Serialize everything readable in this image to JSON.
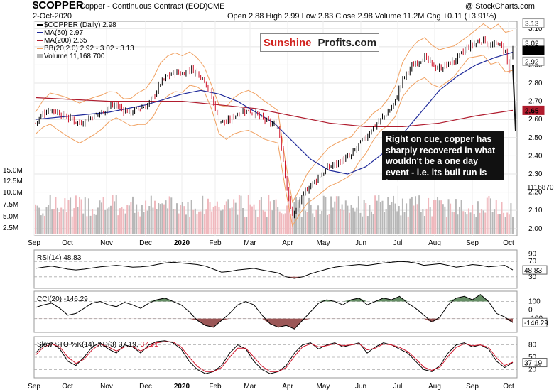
{
  "header": {
    "symbol": "$COPPER",
    "description": "Copper - Continuous Contract (EOD)",
    "exchange": "CME",
    "date": "2-Oct-2020",
    "ohlc_text": "Open 2.88 High 2.99 Low 2.83 Close 2.98 Volume 11.2M Chg +0.11 (+3.91%)",
    "watermark": "@ StockCharts.com"
  },
  "legend": {
    "price": "$COPPER (Daily) 2.98",
    "ma50": "MA(50) 2.97",
    "ma200": "MA(200) 2.65",
    "bb": "BB(20,2.0) 2.92 - 3.02 - 3.13",
    "volume": "Volume 11,168,700"
  },
  "brand": {
    "part1": "Sunshine",
    "part2": "Profits.com"
  },
  "annotation": "Right on cue, copper has sharply recovered in what wouldn't be a one day event - i.e. its bull run is intact.",
  "panels": {
    "rsi_label": "RSI(14) 48.83",
    "cci_label": "CCI(20) -146.29",
    "sto_label_prefix": "Slow STO %K(14) %D(3) 37.19,",
    "sto_label_d": "37.91"
  },
  "colors": {
    "ma50": "#1f2a9a",
    "ma200": "#b01c2e",
    "bb": "#f0a060",
    "up": "#000000",
    "down": "#d0142a",
    "volume_up": "#b7b7b7",
    "volume_down": "#f0b8bd",
    "rsi_fill": "#3a7a3a",
    "cci_fill_pos": "#4a7a4a",
    "cci_fill_neg": "#8a3a3a",
    "sto_k": "#000000",
    "sto_d": "#d0142a",
    "last_price_box": "#000000"
  },
  "chart_data": [
    {
      "type": "line",
      "title": "$COPPER (Daily)",
      "price_axis_ticks": [
        2.0,
        2.1,
        2.2,
        2.3,
        2.4,
        2.5,
        2.6,
        2.7,
        2.8,
        2.9,
        3.0,
        3.1
      ],
      "right_markers": [
        "3.13",
        "3.02",
        "2.98",
        "2.92",
        "2.65"
      ],
      "ylim": [
        1.96,
        3.14
      ],
      "volume_axis_ticks": [
        "2.5M",
        "5.0M",
        "7.5M",
        "10.0M",
        "12.5M",
        "15.0M"
      ],
      "volume_marker": "11168700",
      "x_ticks": [
        "Sep",
        "Oct",
        "Nov",
        "Dec",
        "2020",
        "Feb",
        "Mar",
        "Apr",
        "May",
        "Jun",
        "Jul",
        "Aug",
        "Sep",
        "Oct"
      ],
      "series": [
        {
          "name": "$COPPER",
          "points": [
            [
              0,
              2.58
            ],
            [
              4,
              2.63
            ],
            [
              8,
              2.66
            ],
            [
              12,
              2.64
            ],
            [
              16,
              2.62
            ],
            [
              20,
              2.6
            ],
            [
              24,
              2.58
            ],
            [
              28,
              2.6
            ],
            [
              32,
              2.62
            ],
            [
              36,
              2.64
            ],
            [
              40,
              2.67
            ],
            [
              44,
              2.68
            ],
            [
              48,
              2.65
            ],
            [
              52,
              2.64
            ],
            [
              56,
              2.66
            ],
            [
              60,
              2.67
            ],
            [
              64,
              2.72
            ],
            [
              68,
              2.8
            ],
            [
              72,
              2.84
            ],
            [
              76,
              2.86
            ],
            [
              80,
              2.85
            ],
            [
              84,
              2.88
            ],
            [
              88,
              2.86
            ],
            [
              92,
              2.82
            ],
            [
              96,
              2.72
            ],
            [
              100,
              2.6
            ],
            [
              104,
              2.58
            ],
            [
              108,
              2.62
            ],
            [
              112,
              2.64
            ],
            [
              116,
              2.65
            ],
            [
              120,
              2.63
            ],
            [
              124,
              2.6
            ],
            [
              128,
              2.58
            ],
            [
              132,
              2.56
            ],
            [
              134,
              2.45
            ],
            [
              136,
              2.3
            ],
            [
              138,
              2.15
            ],
            [
              140,
              2.08
            ],
            [
              142,
              2.1
            ],
            [
              144,
              2.15
            ],
            [
              148,
              2.22
            ],
            [
              152,
              2.26
            ],
            [
              156,
              2.3
            ],
            [
              160,
              2.34
            ],
            [
              164,
              2.36
            ],
            [
              168,
              2.38
            ],
            [
              172,
              2.4
            ],
            [
              176,
              2.46
            ],
            [
              180,
              2.5
            ],
            [
              184,
              2.56
            ],
            [
              188,
              2.6
            ],
            [
              192,
              2.64
            ],
            [
              196,
              2.7
            ],
            [
              200,
              2.82
            ],
            [
              204,
              2.88
            ],
            [
              208,
              2.92
            ],
            [
              212,
              2.94
            ],
            [
              216,
              2.9
            ],
            [
              220,
              2.88
            ],
            [
              224,
              2.9
            ],
            [
              228,
              2.92
            ],
            [
              232,
              2.96
            ],
            [
              236,
              3.0
            ],
            [
              240,
              3.02
            ],
            [
              244,
              3.04
            ],
            [
              248,
              3.0
            ],
            [
              252,
              3.02
            ],
            [
              256,
              2.97
            ],
            [
              258,
              2.87
            ],
            [
              260,
              2.98
            ]
          ]
        },
        {
          "name": "MA(50)",
          "points": [
            [
              0,
              2.6
            ],
            [
              20,
              2.62
            ],
            [
              40,
              2.64
            ],
            [
              60,
              2.68
            ],
            [
              80,
              2.74
            ],
            [
              90,
              2.76
            ],
            [
              100,
              2.74
            ],
            [
              110,
              2.7
            ],
            [
              120,
              2.64
            ],
            [
              130,
              2.58
            ],
            [
              140,
              2.48
            ],
            [
              150,
              2.38
            ],
            [
              160,
              2.32
            ],
            [
              170,
              2.3
            ],
            [
              180,
              2.34
            ],
            [
              190,
              2.42
            ],
            [
              200,
              2.52
            ],
            [
              210,
              2.64
            ],
            [
              220,
              2.76
            ],
            [
              230,
              2.84
            ],
            [
              240,
              2.9
            ],
            [
              250,
              2.94
            ],
            [
              260,
              2.97
            ]
          ]
        },
        {
          "name": "MA(200)",
          "points": [
            [
              0,
              2.72
            ],
            [
              40,
              2.7
            ],
            [
              80,
              2.7
            ],
            [
              100,
              2.68
            ],
            [
              120,
              2.66
            ],
            [
              140,
              2.62
            ],
            [
              160,
              2.58
            ],
            [
              180,
              2.56
            ],
            [
              200,
              2.56
            ],
            [
              220,
              2.58
            ],
            [
              240,
              2.62
            ],
            [
              260,
              2.65
            ]
          ]
        }
      ]
    },
    {
      "type": "line",
      "title": "RSI(14)",
      "ylim": [
        0,
        100
      ],
      "y_ticks": [
        30,
        70,
        90
      ],
      "value_marker": "48.83",
      "series": [
        {
          "name": "RSI(14)",
          "values": [
            52,
            55,
            58,
            54,
            50,
            48,
            50,
            53,
            56,
            58,
            60,
            58,
            55,
            56,
            58,
            62,
            66,
            68,
            66,
            64,
            62,
            58,
            50,
            42,
            44,
            48,
            50,
            52,
            48,
            44,
            40,
            30,
            26,
            30,
            38,
            44,
            50,
            55,
            58,
            60,
            62,
            60,
            63,
            66,
            68,
            70,
            69,
            66,
            60,
            62,
            64,
            60,
            55,
            58,
            62,
            60,
            56,
            58,
            60,
            48
          ]
        }
      ]
    },
    {
      "type": "line",
      "title": "CCI(20)",
      "y_ticks": [
        -100,
        0,
        100
      ],
      "value_marker": "-146.29",
      "series": [
        {
          "name": "CCI(20)",
          "values": [
            30,
            60,
            80,
            20,
            -60,
            -40,
            20,
            80,
            100,
            60,
            40,
            90,
            60,
            20,
            80,
            120,
            140,
            100,
            60,
            -20,
            -120,
            -180,
            -200,
            -120,
            -40,
            60,
            100,
            60,
            -60,
            -160,
            -200,
            -180,
            -220,
            -120,
            -20,
            80,
            120,
            100,
            60,
            120,
            140,
            60,
            100,
            140,
            120,
            160,
            80,
            20,
            -60,
            -140,
            -80,
            60,
            140,
            160,
            120,
            180,
            100,
            -40,
            -80,
            -146
          ]
        }
      ]
    },
    {
      "type": "line",
      "title": "Slow STO %K(14) %D(3)",
      "ylim": [
        0,
        100
      ],
      "y_ticks": [
        20,
        50,
        80
      ],
      "value_marker": "37.19",
      "series": [
        {
          "name": "%K",
          "values": [
            60,
            80,
            85,
            70,
            40,
            30,
            50,
            75,
            85,
            70,
            60,
            80,
            75,
            60,
            80,
            88,
            90,
            85,
            70,
            40,
            20,
            10,
            15,
            30,
            60,
            80,
            70,
            40,
            20,
            10,
            15,
            30,
            60,
            80,
            85,
            70,
            80,
            85,
            75,
            80,
            85,
            60,
            75,
            85,
            80,
            70,
            60,
            40,
            20,
            15,
            30,
            60,
            80,
            85,
            75,
            80,
            70,
            40,
            25,
            37
          ]
        },
        {
          "name": "%D",
          "values": [
            55,
            75,
            82,
            75,
            50,
            35,
            45,
            68,
            82,
            75,
            65,
            75,
            76,
            65,
            75,
            85,
            88,
            87,
            75,
            50,
            28,
            15,
            15,
            25,
            50,
            72,
            72,
            50,
            28,
            15,
            15,
            25,
            52,
            75,
            83,
            75,
            78,
            83,
            78,
            80,
            83,
            68,
            72,
            82,
            80,
            74,
            64,
            46,
            26,
            18,
            26,
            52,
            74,
            83,
            78,
            80,
            74,
            48,
            30,
            38
          ]
        }
      ]
    }
  ]
}
